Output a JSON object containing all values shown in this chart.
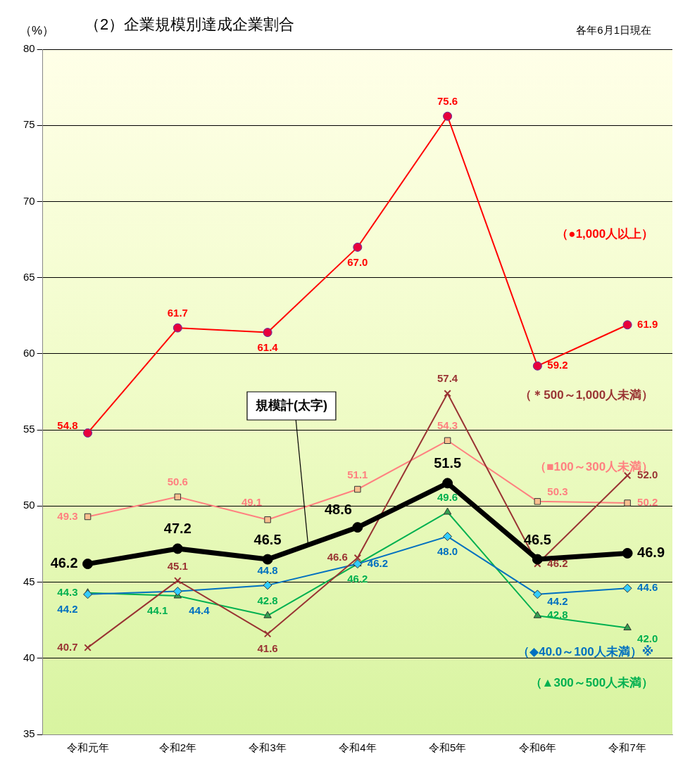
{
  "chart_data": {
    "type": "line",
    "title": "（2）企業規模別達成企業割合",
    "subtitle": "各年6月1日現在",
    "ylabel": "（%）",
    "categories": [
      "令和元年",
      "令和2年",
      "令和3年",
      "令和4年",
      "令和5年",
      "令和6年",
      "令和7年"
    ],
    "ylim": [
      35,
      80
    ],
    "yticks": [
      35,
      40,
      45,
      50,
      55,
      60,
      65,
      70,
      75,
      80
    ],
    "grid": "y",
    "legend": false,
    "series": [
      {
        "name": "（●1,000人以上）",
        "color": "#ff0000",
        "marker": "circle",
        "values": [
          54.8,
          61.7,
          61.4,
          67.0,
          75.6,
          59.2,
          61.9
        ],
        "value_labels": [
          "54.8",
          "61.7",
          "61.4",
          "67.0",
          "75.6",
          "59.2",
          "61.9"
        ]
      },
      {
        "name": "（＊500～1,000人未満）",
        "color": "#993333",
        "marker": "cross",
        "values": [
          40.7,
          45.1,
          41.6,
          46.6,
          57.4,
          46.2,
          52.0
        ],
        "value_labels": [
          "40.7",
          "45.1",
          "41.6",
          "46.6",
          "57.4",
          "46.2",
          "52.0"
        ]
      },
      {
        "name": "（■100～300人未満）",
        "color": "#ff8080",
        "marker": "square",
        "values": [
          49.3,
          50.6,
          49.1,
          51.1,
          54.3,
          50.3,
          50.2
        ],
        "value_labels": [
          "49.3",
          "50.6",
          "49.1",
          "51.1",
          "54.3",
          "50.3",
          "50.2"
        ]
      },
      {
        "name": "（◆40.0～100人未満）※",
        "color": "#0070c0",
        "marker": "diamond",
        "values": [
          44.2,
          44.4,
          44.8,
          46.2,
          48.0,
          44.2,
          44.6
        ],
        "value_labels": [
          "44.2",
          "44.4",
          "44.8",
          "46.2",
          "48.0",
          "44.2",
          "44.6"
        ]
      },
      {
        "name": "（▲300～500人未満）",
        "color": "#00b050",
        "marker": "triangle",
        "values": [
          44.3,
          44.1,
          42.8,
          46.2,
          49.6,
          42.8,
          42.0
        ],
        "value_labels": [
          "44.3",
          "44.1",
          "42.8",
          "46.2",
          "49.6",
          "42.8",
          "42.0"
        ]
      },
      {
        "name": "規模計(太字)",
        "color": "#000000",
        "marker": "circle",
        "values": [
          46.2,
          47.2,
          46.5,
          48.6,
          51.5,
          46.5,
          46.9
        ],
        "value_labels": [
          "46.2",
          "47.2",
          "46.5",
          "48.6",
          "51.5",
          "46.5",
          "46.9"
        ]
      }
    ]
  }
}
